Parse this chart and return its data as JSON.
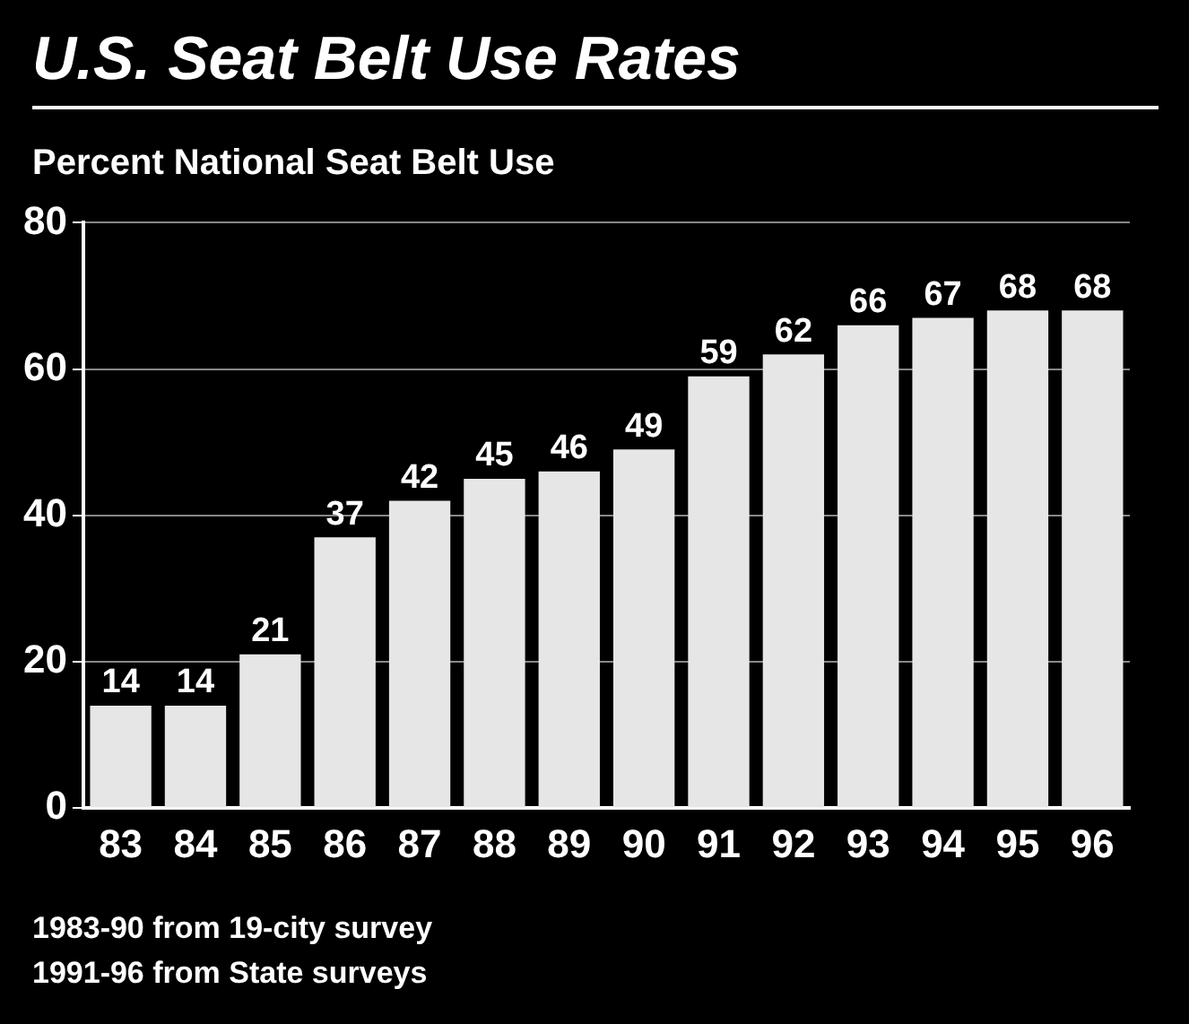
{
  "chart_data": {
    "type": "bar",
    "title": "U.S. Seat Belt Use Rates",
    "subtitle": "Percent National Seat Belt Use",
    "categories": [
      "83",
      "84",
      "85",
      "86",
      "87",
      "88",
      "89",
      "90",
      "91",
      "92",
      "93",
      "94",
      "95",
      "96"
    ],
    "values": [
      14,
      14,
      21,
      37,
      42,
      45,
      46,
      49,
      59,
      62,
      66,
      67,
      68,
      68
    ],
    "color": "#e6e6e6",
    "ylim": [
      0,
      80
    ],
    "yticks": [
      0,
      20,
      40,
      60,
      80
    ],
    "grid": "y",
    "data_labels": true,
    "annotations": [
      "1983-90 from 19-city survey",
      "1991-96 from State surveys"
    ]
  }
}
